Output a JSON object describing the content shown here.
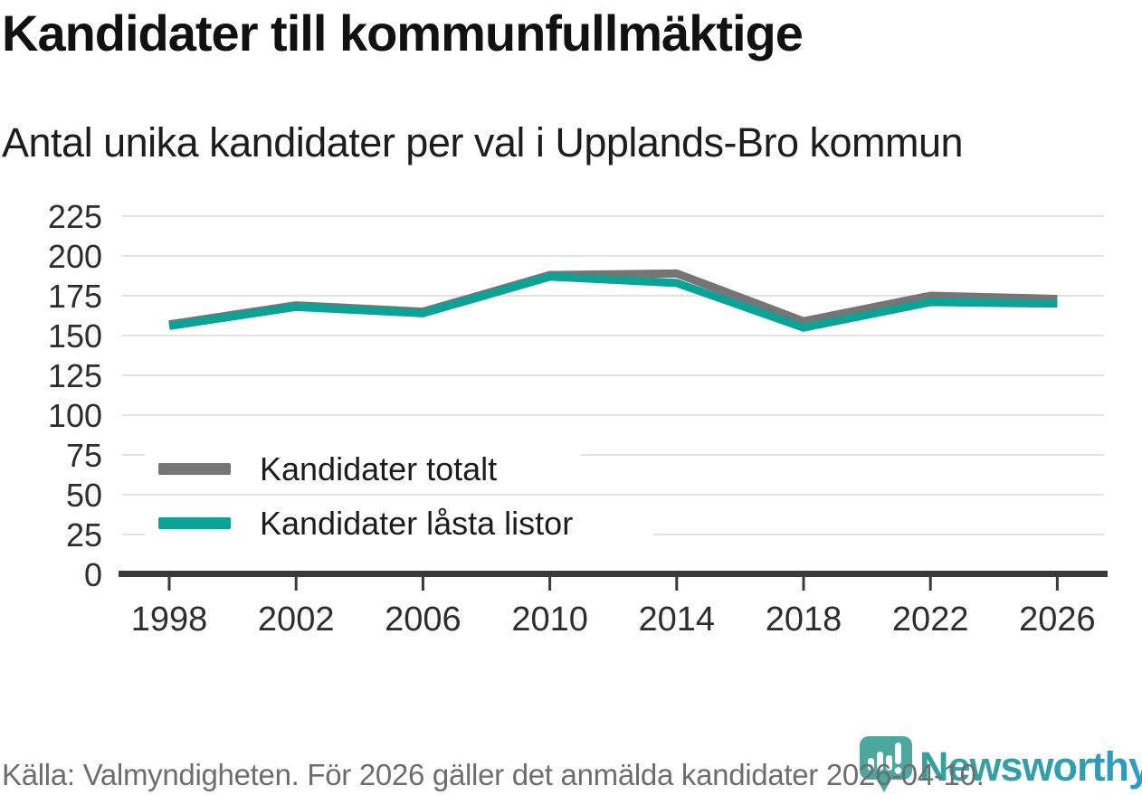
{
  "header": {
    "title": "Kandidater till kommunfullmäktige",
    "subtitle": "Antal unika kandidater per val i Upplands-Bro kommun"
  },
  "chart_data": {
    "type": "line",
    "title": "Kandidater till kommunfullmäktige",
    "subtitle": "Antal unika kandidater per val i Upplands-Bro kommun",
    "x": [
      1998,
      2002,
      2006,
      2010,
      2014,
      2018,
      2022,
      2026
    ],
    "series": [
      {
        "name": "Kandidater totalt",
        "color": "#757575",
        "values": [
          157,
          169,
          165,
          188,
          189,
          159,
          175,
          173
        ]
      },
      {
        "name": "Kandidater låsta listor",
        "color": "#0aa396",
        "values": [
          156,
          168,
          164,
          187,
          183,
          155,
          171,
          170
        ]
      }
    ],
    "ylim": [
      0,
      225
    ],
    "yticks": [
      0,
      25,
      50,
      75,
      100,
      125,
      150,
      175,
      200,
      225
    ],
    "xlabel": "",
    "ylabel": "",
    "grid": "horizontal",
    "legend_position": "inside-left-middle",
    "colors": {
      "gridline": "#e2e2e2",
      "axis": "#3a3a3a",
      "tick_label": "#2d2d2d",
      "legend_text": "#1c1c1c"
    }
  },
  "footer": {
    "source": "Källa: Valmyndigheten. För 2026 gäller det anmälda kandidater 2026-04-10."
  },
  "logo": {
    "brand": "Newsworthy",
    "icon": "bar-chart-pin-icon",
    "colors": {
      "pin": "#4CA79F",
      "wordmark_start": "#35a09b",
      "wordmark_end": "#2b9cc9"
    }
  }
}
